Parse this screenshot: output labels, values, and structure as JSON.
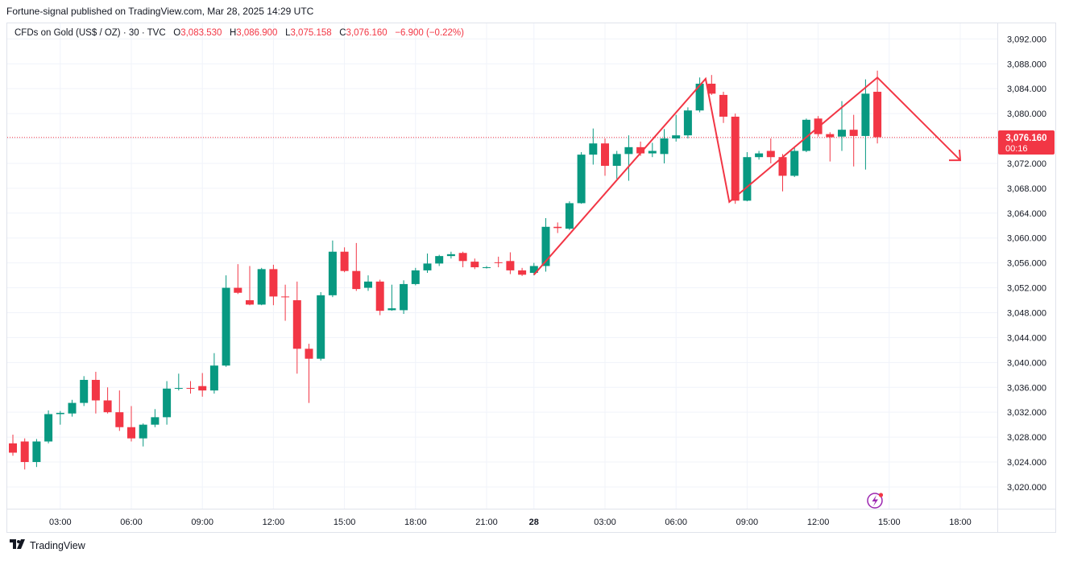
{
  "publisher": "Fortune-signal published on TradingView.com, Mar 28, 2025 14:29 UTC",
  "legend": {
    "symbol": "CFDs on Gold (US$ / OZ) · 30 · TVC",
    "o_label": "O",
    "o_value": "3,083.530",
    "h_label": "H",
    "h_value": "3,086.900",
    "l_label": "L",
    "l_value": "3,075.158",
    "c_label": "C",
    "c_value": "3,076.160",
    "change": "−6.900 (−0.22%)"
  },
  "price_tag": {
    "price": "3,076.160",
    "countdown": "00:16",
    "color": "#f23645"
  },
  "footer": {
    "brand": "TradingView",
    "logo_icon": "tradingview-logo-icon"
  },
  "colors": {
    "up": "#089981",
    "down": "#f23645",
    "grid": "#f0f3fa",
    "drawing": "#f23645"
  },
  "chart_data": {
    "type": "candlestick",
    "y_ticks": [
      3020,
      3024,
      3028,
      3032,
      3036,
      3040,
      3044,
      3048,
      3052,
      3056,
      3060,
      3064,
      3068,
      3072,
      3076,
      3080,
      3084,
      3088,
      3092
    ],
    "y_tick_labels": [
      "3,020.000",
      "3,024.000",
      "3,028.000",
      "3,032.000",
      "3,036.000",
      "3,040.000",
      "3,044.000",
      "3,048.000",
      "3,052.000",
      "3,056.000",
      "3,060.000",
      "3,064.000",
      "3,068.000",
      "3,072.000",
      "3,076.000",
      "3,080.000",
      "3,084.000",
      "3,088.000",
      "3,092.000"
    ],
    "ylim": [
      3016.5,
      3094.5
    ],
    "x_ticks": [
      {
        "label": "03:00",
        "bar": 4,
        "bold": false
      },
      {
        "label": "06:00",
        "bar": 10,
        "bold": false
      },
      {
        "label": "09:00",
        "bar": 16,
        "bold": false
      },
      {
        "label": "12:00",
        "bar": 22,
        "bold": false
      },
      {
        "label": "15:00",
        "bar": 28,
        "bold": false
      },
      {
        "label": "18:00",
        "bar": 34,
        "bold": false
      },
      {
        "label": "21:00",
        "bar": 40,
        "bold": false
      },
      {
        "label": "28",
        "bar": 44,
        "bold": true
      },
      {
        "label": "03:00",
        "bar": 50,
        "bold": false
      },
      {
        "label": "06:00",
        "bar": 56,
        "bold": false
      },
      {
        "label": "09:00",
        "bar": 62,
        "bold": false
      },
      {
        "label": "12:00",
        "bar": 68,
        "bold": false
      },
      {
        "label": "15:00",
        "bar": 74,
        "bold": false
      },
      {
        "label": "18:00",
        "bar": 80,
        "bold": false
      }
    ],
    "bar_count_span": 81,
    "candles": [
      [
        3027.0,
        3028.4,
        3025.0,
        3025.5
      ],
      [
        3027.3,
        3027.8,
        3022.8,
        3024.0
      ],
      [
        3024.0,
        3027.7,
        3023.2,
        3027.3
      ],
      [
        3027.3,
        3032.3,
        3027.0,
        3031.7
      ],
      [
        3031.7,
        3032.2,
        3030.0,
        3031.9
      ],
      [
        3031.8,
        3034.0,
        3031.3,
        3033.5
      ],
      [
        3033.5,
        3037.8,
        3033.0,
        3037.2
      ],
      [
        3037.2,
        3038.5,
        3031.8,
        3033.9
      ],
      [
        3033.9,
        3036.0,
        3031.8,
        3032.0
      ],
      [
        3032.0,
        3035.5,
        3029.0,
        3029.6
      ],
      [
        3029.6,
        3033.0,
        3027.3,
        3027.8
      ],
      [
        3027.8,
        3030.2,
        3026.5,
        3030.0
      ],
      [
        3030.0,
        3032.5,
        3029.6,
        3031.2
      ],
      [
        3031.2,
        3037.0,
        3030.0,
        3035.8
      ],
      [
        3035.8,
        3038.2,
        3035.5,
        3035.9
      ],
      [
        3035.9,
        3037.0,
        3035.0,
        3035.8
      ],
      [
        3036.2,
        3038.3,
        3034.5,
        3035.5
      ],
      [
        3035.5,
        3041.5,
        3035.0,
        3039.5
      ],
      [
        3039.5,
        3054.0,
        3039.3,
        3052.0
      ],
      [
        3052.0,
        3055.8,
        3051.0,
        3051.2
      ],
      [
        3050.0,
        3055.5,
        3049.2,
        3049.3
      ],
      [
        3049.3,
        3055.2,
        3049.2,
        3055.0
      ],
      [
        3055.0,
        3055.7,
        3049.2,
        3050.6
      ],
      [
        3050.6,
        3052.5,
        3046.7,
        3050.5
      ],
      [
        3050.0,
        3053.0,
        3038.2,
        3042.2
      ],
      [
        3042.2,
        3043.0,
        3033.5,
        3040.6
      ],
      [
        3040.6,
        3051.3,
        3040.3,
        3050.8
      ],
      [
        3050.8,
        3059.6,
        3050.5,
        3057.8
      ],
      [
        3057.8,
        3058.5,
        3054.5,
        3054.7
      ],
      [
        3054.7,
        3059.2,
        3051.5,
        3051.8
      ],
      [
        3052.0,
        3054.0,
        3051.5,
        3053.0
      ],
      [
        3053.0,
        3053.3,
        3047.6,
        3048.3
      ],
      [
        3048.4,
        3052.5,
        3048.3,
        3048.7
      ],
      [
        3048.4,
        3053.2,
        3047.8,
        3052.6
      ],
      [
        3052.6,
        3055.2,
        3052.4,
        3054.8
      ],
      [
        3054.8,
        3057.5,
        3054.4,
        3055.9
      ],
      [
        3055.9,
        3057.3,
        3055.5,
        3057.1
      ],
      [
        3057.1,
        3057.8,
        3056.7,
        3057.4
      ],
      [
        3057.6,
        3057.8,
        3055.3,
        3056.3
      ],
      [
        3056.2,
        3056.7,
        3055.0,
        3055.3
      ],
      [
        3055.2,
        3055.5,
        3055.1,
        3055.3
      ],
      [
        3056.1,
        3057.0,
        3055.3,
        3056.0
      ],
      [
        3056.3,
        3057.7,
        3054.2,
        3054.8
      ],
      [
        3054.8,
        3055.2,
        3053.9,
        3054.1
      ],
      [
        3054.4,
        3056.0,
        3054.0,
        3055.5
      ],
      [
        3055.5,
        3063.2,
        3054.6,
        3061.8
      ],
      [
        3061.8,
        3062.5,
        3060.8,
        3061.6
      ],
      [
        3061.5,
        3065.9,
        3061.3,
        3065.6
      ],
      [
        3065.6,
        3073.8,
        3065.5,
        3073.4
      ],
      [
        3073.4,
        3077.6,
        3071.8,
        3075.2
      ],
      [
        3075.2,
        3076.0,
        3070.0,
        3071.6
      ],
      [
        3071.6,
        3074.0,
        3069.5,
        3073.5
      ],
      [
        3073.5,
        3076.5,
        3069.2,
        3074.6
      ],
      [
        3074.6,
        3075.5,
        3073.2,
        3073.6
      ],
      [
        3073.6,
        3075.3,
        3073.0,
        3074.0
      ],
      [
        3073.5,
        3077.5,
        3072.0,
        3076.0
      ],
      [
        3076.0,
        3079.8,
        3075.5,
        3076.5
      ],
      [
        3076.5,
        3081.0,
        3076.0,
        3080.5
      ],
      [
        3080.5,
        3085.8,
        3080.2,
        3084.8
      ],
      [
        3084.8,
        3086.2,
        3083.0,
        3083.2
      ],
      [
        3083.0,
        3083.5,
        3078.5,
        3079.5
      ],
      [
        3079.5,
        3080.0,
        3065.5,
        3066.0
      ],
      [
        3066.0,
        3073.8,
        3065.9,
        3073.0
      ],
      [
        3073.0,
        3074.0,
        3072.6,
        3073.6
      ],
      [
        3074.0,
        3076.0,
        3072.0,
        3073.0
      ],
      [
        3073.0,
        3073.5,
        3067.5,
        3070.0
      ],
      [
        3070.0,
        3074.5,
        3069.8,
        3074.0
      ],
      [
        3074.0,
        3079.2,
        3073.8,
        3079.0
      ],
      [
        3079.2,
        3079.6,
        3076.3,
        3076.7
      ],
      [
        3076.7,
        3077.0,
        3072.3,
        3076.2
      ],
      [
        3076.3,
        3082.0,
        3074.0,
        3077.4
      ],
      [
        3077.4,
        3079.8,
        3071.5,
        3076.4
      ],
      [
        3076.4,
        3085.5,
        3071.0,
        3083.2
      ],
      [
        3083.5,
        3086.9,
        3075.2,
        3076.2
      ]
    ],
    "current_price": 3076.16,
    "drawings": [
      {
        "kind": "polyline",
        "points": [
          [
            44.0,
            3054.1
          ],
          [
            58.5,
            3085.6
          ],
          [
            60.5,
            3065.8
          ],
          [
            73.0,
            3085.8
          ],
          [
            80.0,
            3072.5
          ]
        ]
      },
      {
        "kind": "arrowhead",
        "at": [
          80.0,
          3072.5
        ]
      }
    ]
  }
}
